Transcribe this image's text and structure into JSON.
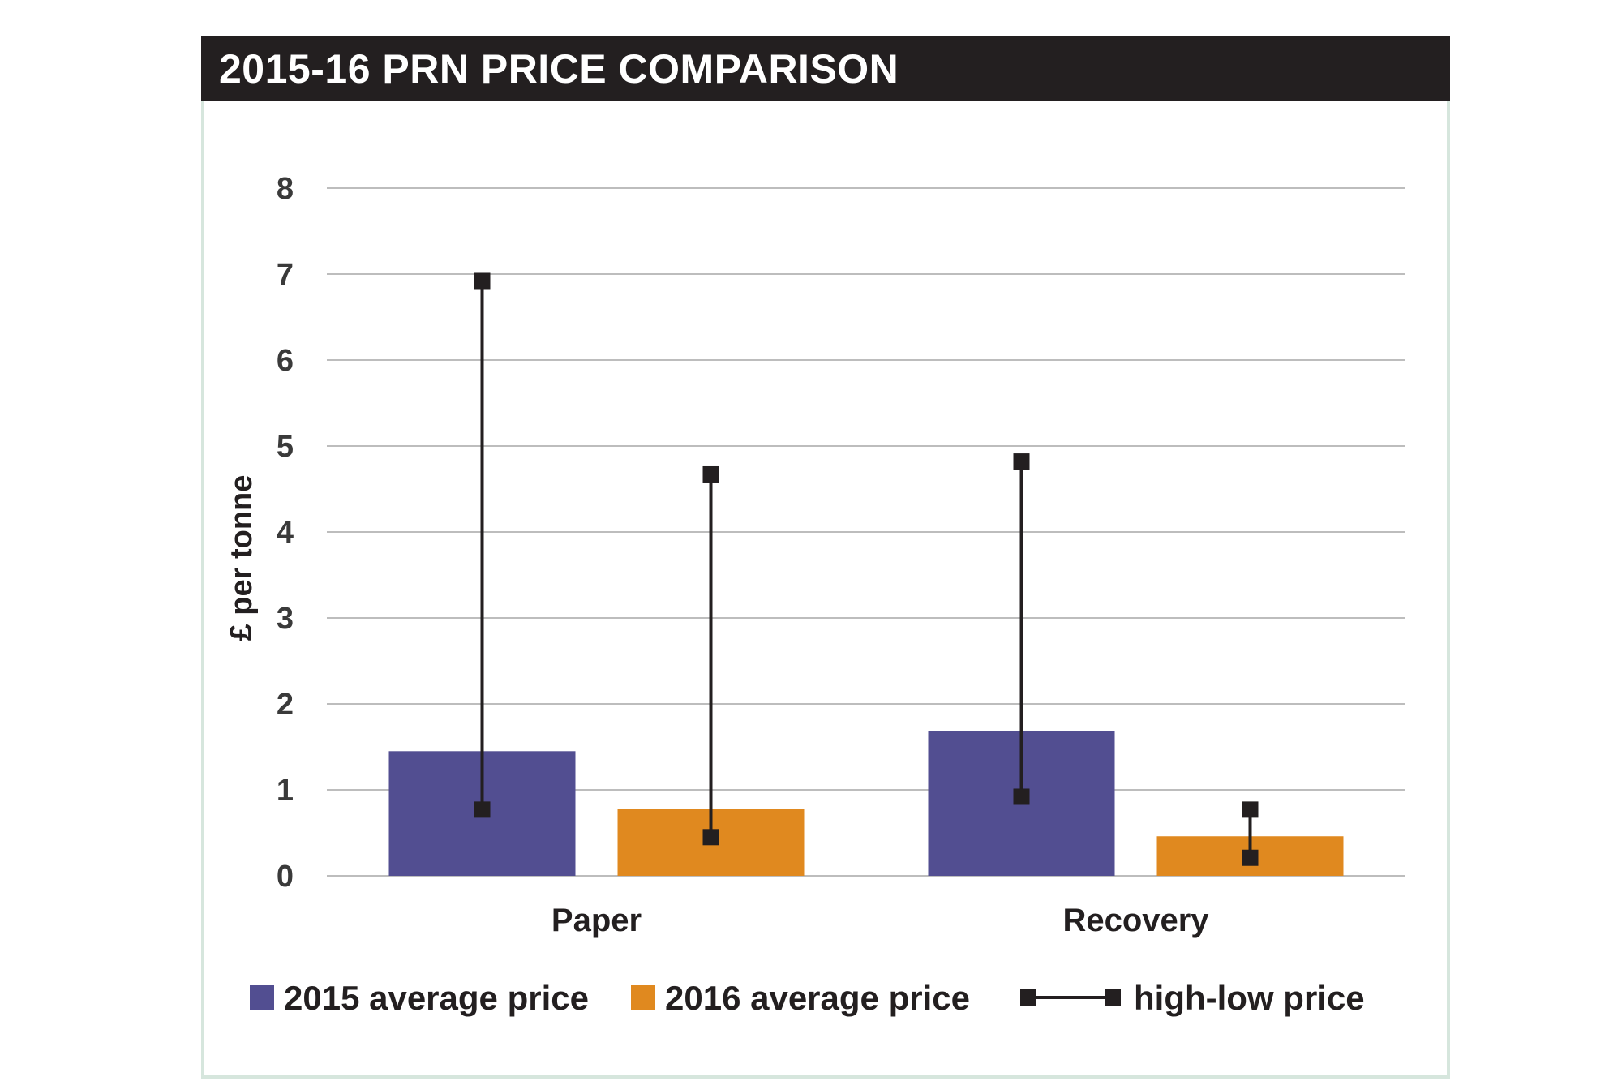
{
  "chart_data": {
    "type": "bar",
    "title": "2015-16 PRN PRICE COMPARISON",
    "ylabel": "£ per tonne",
    "xlabel": "",
    "ylim": [
      0,
      8
    ],
    "yticks": [
      0,
      1,
      2,
      3,
      4,
      5,
      6,
      7,
      8
    ],
    "categories": [
      "Paper",
      "Recovery"
    ],
    "series": [
      {
        "name": "2015 average price",
        "color": "#524e91",
        "values": [
          1.45,
          1.68
        ],
        "high": [
          6.92,
          4.82
        ],
        "low": [
          0.77,
          0.92
        ]
      },
      {
        "name": "2016 average price",
        "color": "#e0891f",
        "values": [
          0.78,
          0.46
        ],
        "high": [
          4.67,
          0.77
        ],
        "low": [
          0.45,
          0.21
        ]
      }
    ],
    "errorbar_legend": "high-low price",
    "errorbar_color": "#231f20",
    "grid": true,
    "legend_position": "bottom"
  }
}
